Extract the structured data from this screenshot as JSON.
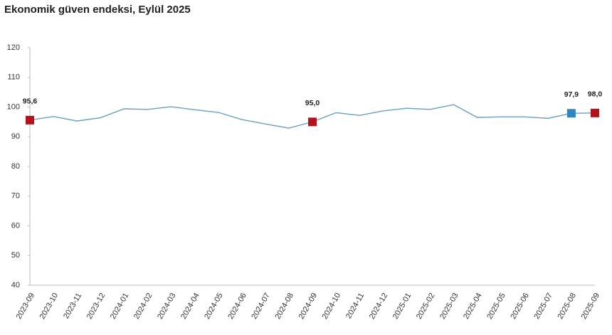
{
  "chart_data": {
    "type": "line",
    "title": "Ekonomik güven endeksi, Eylül 2025",
    "categories": [
      "2023-09",
      "2023-10",
      "2023-11",
      "2023-12",
      "2024-01",
      "2024-02",
      "2024-03",
      "2024-04",
      "2024-05",
      "2024-06",
      "2024-07",
      "2024-08",
      "2024-09",
      "2024-10",
      "2024-11",
      "2024-12",
      "2025-01",
      "2025-02",
      "2025-03",
      "2025-04",
      "2025-05",
      "2025-06",
      "2025-07",
      "2025-08",
      "2025-09"
    ],
    "series": [
      {
        "color": "#6a9fc0",
        "values": [
          95.6,
          96.8,
          95.3,
          96.4,
          99.4,
          99.2,
          100.1,
          99.1,
          98.2,
          95.8,
          94.3,
          92.9,
          95.0,
          98.1,
          97.2,
          98.7,
          99.6,
          99.2,
          100.8,
          96.5,
          96.7,
          96.7,
          96.2,
          97.9,
          98.0
        ],
        "value_labels": [
          "95,6",
          null,
          null,
          null,
          null,
          null,
          null,
          null,
          null,
          null,
          null,
          null,
          "95,0",
          null,
          null,
          null,
          null,
          null,
          null,
          null,
          null,
          null,
          null,
          "97,9",
          "98,0"
        ],
        "marker_colors": [
          "#b5121b",
          null,
          null,
          null,
          null,
          null,
          null,
          null,
          null,
          null,
          null,
          null,
          "#b5121b",
          null,
          null,
          null,
          null,
          null,
          null,
          null,
          null,
          null,
          null,
          "#2e86c1",
          "#b5121b"
        ]
      }
    ],
    "ylim": [
      40,
      120
    ],
    "yticks": [
      40,
      50,
      60,
      70,
      80,
      90,
      100,
      110,
      120
    ],
    "grid": false
  }
}
